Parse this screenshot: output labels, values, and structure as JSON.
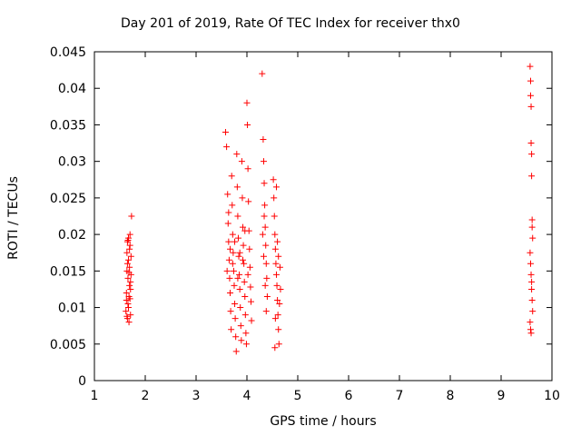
{
  "chart_data": {
    "type": "scatter",
    "title": "Day 201 of 2019, Rate Of TEC Index for receiver thx0",
    "xlabel": "GPS time / hours",
    "ylabel": "ROTI / TECUs",
    "xlim": [
      1,
      10
    ],
    "ylim": [
      0,
      0.045
    ],
    "xticks": [
      "1",
      "2",
      "3",
      "4",
      "5",
      "6",
      "7",
      "8",
      "9",
      "10"
    ],
    "yticks": [
      "0",
      "0.005",
      "0.01",
      "0.015",
      "0.02",
      "0.025",
      "0.03",
      "0.035",
      "0.04",
      "0.045"
    ],
    "grid": false,
    "marker": "+",
    "color": "#ff0000",
    "series": [
      {
        "name": "thx0",
        "points": [
          [
            1.62,
            0.0095
          ],
          [
            1.63,
            0.012
          ],
          [
            1.64,
            0.015
          ],
          [
            1.64,
            0.0175
          ],
          [
            1.65,
            0.019
          ],
          [
            1.65,
            0.0085
          ],
          [
            1.66,
            0.0105
          ],
          [
            1.66,
            0.014
          ],
          [
            1.67,
            0.0165
          ],
          [
            1.67,
            0.0195
          ],
          [
            1.68,
            0.008
          ],
          [
            1.68,
            0.0115
          ],
          [
            1.69,
            0.013
          ],
          [
            1.69,
            0.0155
          ],
          [
            1.7,
            0.0185
          ],
          [
            1.7,
            0.02
          ],
          [
            1.71,
            0.009
          ],
          [
            1.71,
            0.0125
          ],
          [
            1.72,
            0.0145
          ],
          [
            1.72,
            0.017
          ],
          [
            1.73,
            0.0225
          ],
          [
            1.63,
            0.011
          ],
          [
            1.65,
            0.016
          ],
          [
            1.67,
            0.01
          ],
          [
            1.69,
            0.018
          ],
          [
            1.71,
            0.0135
          ],
          [
            1.64,
            0.0088
          ],
          [
            1.68,
            0.0148
          ],
          [
            1.7,
            0.0112
          ],
          [
            1.66,
            0.0192
          ],
          [
            3.58,
            0.034
          ],
          [
            3.6,
            0.032
          ],
          [
            3.62,
            0.0255
          ],
          [
            3.63,
            0.0215
          ],
          [
            3.64,
            0.019
          ],
          [
            3.65,
            0.0165
          ],
          [
            3.66,
            0.014
          ],
          [
            3.67,
            0.012
          ],
          [
            3.68,
            0.0095
          ],
          [
            3.69,
            0.007
          ],
          [
            3.7,
            0.028
          ],
          [
            3.71,
            0.024
          ],
          [
            3.72,
            0.02
          ],
          [
            3.73,
            0.0175
          ],
          [
            3.74,
            0.015
          ],
          [
            3.75,
            0.013
          ],
          [
            3.76,
            0.0105
          ],
          [
            3.77,
            0.0085
          ],
          [
            3.78,
            0.006
          ],
          [
            3.79,
            0.004
          ],
          [
            3.8,
            0.031
          ],
          [
            3.81,
            0.0265
          ],
          [
            3.82,
            0.0225
          ],
          [
            3.83,
            0.0195
          ],
          [
            3.84,
            0.017
          ],
          [
            3.85,
            0.0145
          ],
          [
            3.86,
            0.0125
          ],
          [
            3.87,
            0.01
          ],
          [
            3.88,
            0.0075
          ],
          [
            3.89,
            0.0055
          ],
          [
            3.9,
            0.03
          ],
          [
            3.91,
            0.025
          ],
          [
            3.92,
            0.021
          ],
          [
            3.93,
            0.0185
          ],
          [
            3.94,
            0.016
          ],
          [
            3.95,
            0.0135
          ],
          [
            3.96,
            0.0115
          ],
          [
            3.97,
            0.009
          ],
          [
            3.98,
            0.0065
          ],
          [
            3.99,
            0.005
          ],
          [
            4.0,
            0.038
          ],
          [
            4.01,
            0.035
          ],
          [
            4.02,
            0.029
          ],
          [
            4.03,
            0.0245
          ],
          [
            4.04,
            0.0205
          ],
          [
            4.05,
            0.018
          ],
          [
            4.06,
            0.0155
          ],
          [
            4.07,
            0.0128
          ],
          [
            4.08,
            0.0108
          ],
          [
            4.09,
            0.0082
          ],
          [
            3.61,
            0.015
          ],
          [
            3.64,
            0.023
          ],
          [
            3.67,
            0.018
          ],
          [
            3.72,
            0.016
          ],
          [
            3.76,
            0.019
          ],
          [
            3.82,
            0.014
          ],
          [
            3.86,
            0.0175
          ],
          [
            3.92,
            0.0165
          ],
          [
            3.96,
            0.0205
          ],
          [
            4.02,
            0.0145
          ],
          [
            4.3,
            0.042
          ],
          [
            4.32,
            0.033
          ],
          [
            4.33,
            0.03
          ],
          [
            4.34,
            0.027
          ],
          [
            4.35,
            0.024
          ],
          [
            4.36,
            0.021
          ],
          [
            4.37,
            0.0185
          ],
          [
            4.38,
            0.016
          ],
          [
            4.39,
            0.014
          ],
          [
            4.4,
            0.0115
          ],
          [
            4.31,
            0.02
          ],
          [
            4.33,
            0.017
          ],
          [
            4.36,
            0.013
          ],
          [
            4.38,
            0.0095
          ],
          [
            4.34,
            0.0225
          ],
          [
            4.52,
            0.0275
          ],
          [
            4.53,
            0.025
          ],
          [
            4.54,
            0.0225
          ],
          [
            4.55,
            0.02
          ],
          [
            4.56,
            0.018
          ],
          [
            4.57,
            0.016
          ],
          [
            4.58,
            0.0145
          ],
          [
            4.59,
            0.013
          ],
          [
            4.6,
            0.011
          ],
          [
            4.61,
            0.009
          ],
          [
            4.62,
            0.007
          ],
          [
            4.63,
            0.005
          ],
          [
            4.55,
            0.0045
          ],
          [
            4.6,
            0.019
          ],
          [
            4.65,
            0.0155
          ],
          [
            4.66,
            0.0125
          ],
          [
            4.64,
            0.0105
          ],
          [
            4.58,
            0.0265
          ],
          [
            4.56,
            0.0085
          ],
          [
            4.62,
            0.017
          ],
          [
            9.57,
            0.043
          ],
          [
            9.58,
            0.041
          ],
          [
            9.58,
            0.039
          ],
          [
            9.59,
            0.0375
          ],
          [
            9.59,
            0.0325
          ],
          [
            9.6,
            0.031
          ],
          [
            9.6,
            0.028
          ],
          [
            9.61,
            0.022
          ],
          [
            9.61,
            0.021
          ],
          [
            9.62,
            0.0195
          ],
          [
            9.57,
            0.0175
          ],
          [
            9.58,
            0.016
          ],
          [
            9.59,
            0.0145
          ],
          [
            9.6,
            0.0125
          ],
          [
            9.61,
            0.011
          ],
          [
            9.62,
            0.0095
          ],
          [
            9.57,
            0.008
          ],
          [
            9.58,
            0.007
          ],
          [
            9.59,
            0.0065
          ],
          [
            9.6,
            0.0135
          ]
        ]
      }
    ]
  }
}
